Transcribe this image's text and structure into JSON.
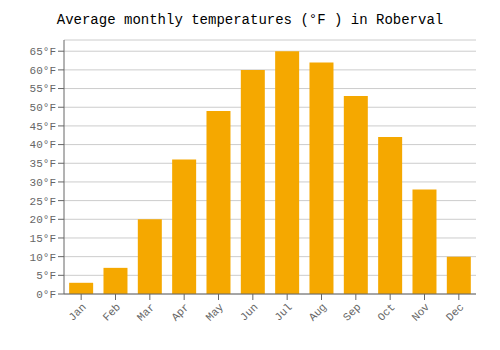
{
  "chart_data": {
    "type": "bar",
    "title": "Average monthly temperatures (°F ) in Roberval",
    "categories": [
      "Jan",
      "Feb",
      "Mar",
      "Apr",
      "May",
      "Jun",
      "Jul",
      "Aug",
      "Sep",
      "Oct",
      "Nov",
      "Dec"
    ],
    "values": [
      3,
      7,
      20,
      36,
      49,
      60,
      65,
      62,
      53,
      42,
      28,
      10
    ],
    "color": "#F5A800",
    "ylim": [
      0,
      68
    ],
    "yticks": [
      {
        "value": 0,
        "label": "0°F"
      },
      {
        "value": 5,
        "label": "5°F"
      },
      {
        "value": 10,
        "label": "10°F"
      },
      {
        "value": 15,
        "label": "15°F"
      },
      {
        "value": 20,
        "label": "20°F"
      },
      {
        "value": 25,
        "label": "25°F"
      },
      {
        "value": 30,
        "label": "30°F"
      },
      {
        "value": 35,
        "label": "35°F"
      },
      {
        "value": 40,
        "label": "40°F"
      },
      {
        "value": 45,
        "label": "45°F"
      },
      {
        "value": 50,
        "label": "50°F"
      },
      {
        "value": 55,
        "label": "55°F"
      },
      {
        "value": 60,
        "label": "60°F"
      },
      {
        "value": 65,
        "label": "65°F"
      }
    ],
    "grid": true
  }
}
